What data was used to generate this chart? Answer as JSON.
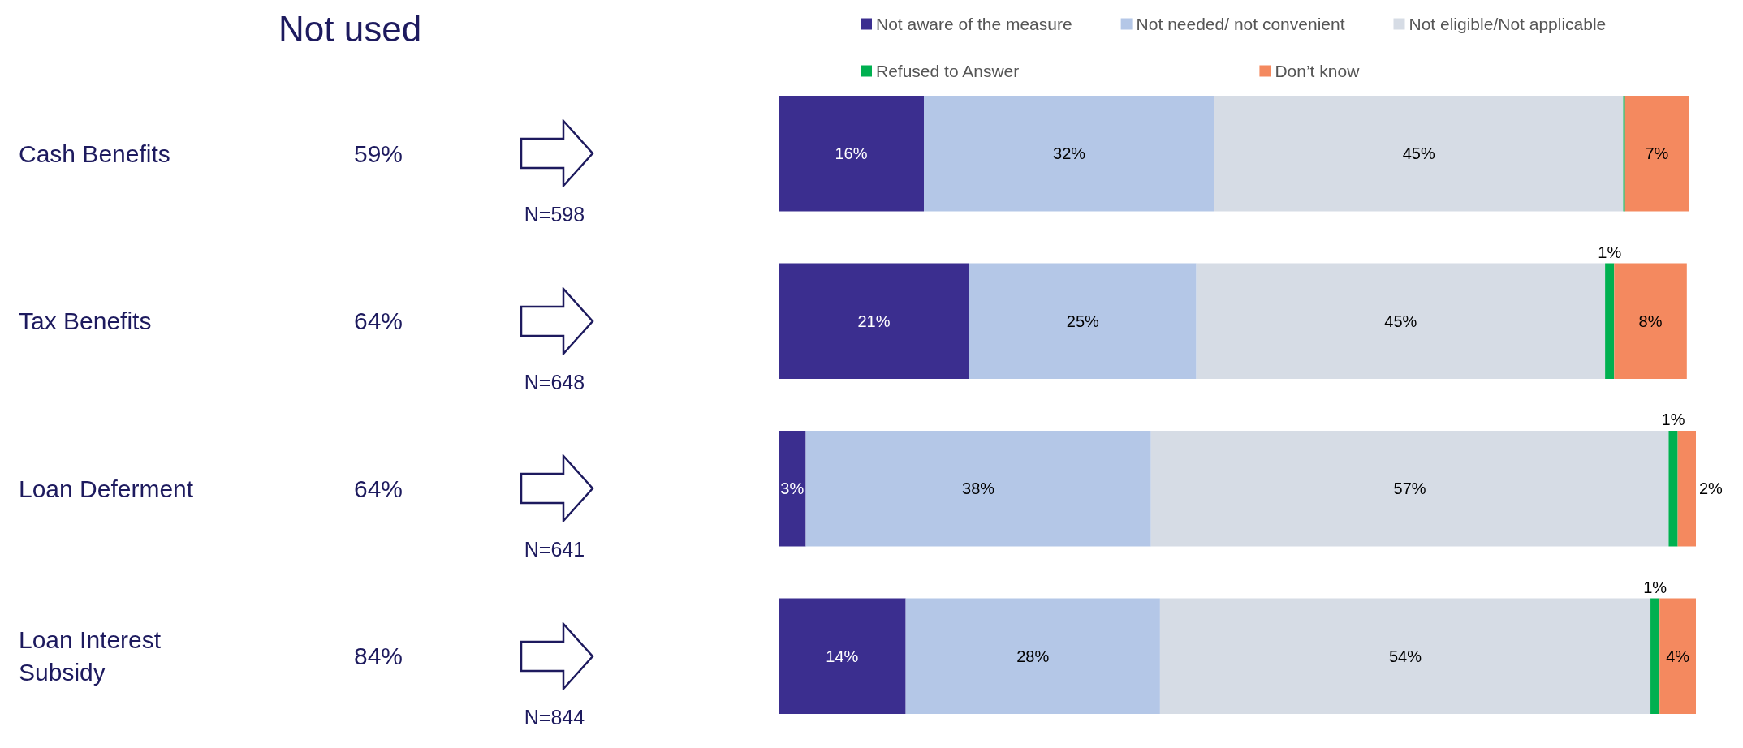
{
  "chart_data": {
    "type": "bar",
    "orientation": "horizontal",
    "stacked": true,
    "tick_labels": "y",
    "title": "Not used",
    "legend": "top",
    "categories": [
      "Cash Benefits",
      "Tax Benefits",
      "Loan Deferment",
      "Loan Interest Subsidy"
    ],
    "annotations": [
      "59%",
      "N=598",
      "64%",
      "N=648",
      "64%",
      "N=641",
      "84%",
      "N=844"
    ],
    "series": [
      {
        "name": "Not aware of the measure",
        "color": "#3b2e8f",
        "values": [
          16,
          21,
          3,
          14
        ],
        "value_labels": [
          "16%",
          "21%",
          "3%",
          "14%"
        ]
      },
      {
        "name": "Not needed/ not convenient",
        "color": "#b4c7e7",
        "values": [
          32,
          25,
          38,
          28
        ],
        "value_labels": [
          "32%",
          "25%",
          "38%",
          "28%"
        ]
      },
      {
        "name": "Not eligible/Not applicable",
        "color": "#d6dce5",
        "values": [
          45,
          45,
          57,
          54
        ],
        "value_labels": [
          "45%",
          "45%",
          "57%",
          "54%"
        ]
      },
      {
        "name": "Refused to Answer",
        "color": "#00b050",
        "values": [
          0.2,
          1,
          1,
          1
        ],
        "value_labels": [
          null,
          "1%",
          "1%",
          "1%"
        ]
      },
      {
        "name": "Don’t know",
        "color": "#f4895f",
        "values": [
          7,
          8,
          2,
          4
        ],
        "value_labels": [
          "7%",
          "8%",
          "2%",
          "4%"
        ]
      }
    ]
  }
}
